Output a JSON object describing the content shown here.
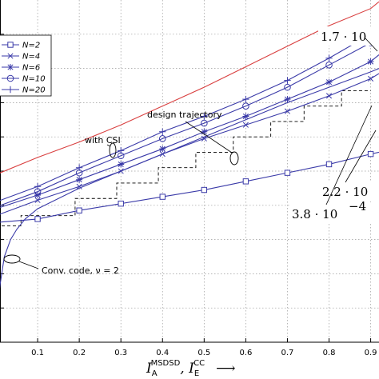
{
  "chart_data": {
    "type": "line",
    "xlabel": {
      "main1": "I",
      "sub1": "A",
      "sup1": "MSDSD",
      "sep": ", ",
      "main2": "I",
      "sub2": "E",
      "sup2": "CC",
      "arrow": "⟶"
    },
    "xlim": [
      0,
      0.92
    ],
    "ylim": [
      0,
      1
    ],
    "x_ticks": [
      "0.1",
      "0.2",
      "0.3",
      "0.4",
      "0.5",
      "0.6",
      "0.7",
      "0.8",
      "0.9"
    ],
    "grid": true,
    "legend_placement": "top-left",
    "series": [
      {
        "name": "N=2",
        "marker": "square",
        "color": "#3a3aa8",
        "x": [
          0.0,
          0.1,
          0.2,
          0.3,
          0.4,
          0.5,
          0.6,
          0.7,
          0.8,
          0.9,
          0.92
        ],
        "y": [
          0.35,
          0.36,
          0.385,
          0.405,
          0.425,
          0.445,
          0.47,
          0.495,
          0.52,
          0.55,
          0.555
        ]
      },
      {
        "name": "N=4",
        "marker": "x",
        "color": "#3a3aa8",
        "x": [
          0.0,
          0.1,
          0.2,
          0.3,
          0.4,
          0.5,
          0.6,
          0.7,
          0.8,
          0.9,
          0.92
        ],
        "y": [
          0.37,
          0.415,
          0.455,
          0.5,
          0.55,
          0.595,
          0.635,
          0.675,
          0.72,
          0.77,
          0.785
        ]
      },
      {
        "name": "N=6",
        "marker": "star",
        "color": "#3a3aa8",
        "x": [
          0.0,
          0.1,
          0.2,
          0.3,
          0.4,
          0.5,
          0.6,
          0.7,
          0.8,
          0.9,
          0.92
        ],
        "y": [
          0.39,
          0.43,
          0.475,
          0.52,
          0.565,
          0.615,
          0.66,
          0.71,
          0.76,
          0.82,
          0.84
        ]
      },
      {
        "name": "N=10",
        "marker": "circle",
        "color": "#3a3aa8",
        "x": [
          0.0,
          0.1,
          0.2,
          0.3,
          0.4,
          0.5,
          0.6,
          0.7,
          0.8,
          0.9,
          0.92
        ],
        "y": [
          0.395,
          0.44,
          0.495,
          0.545,
          0.595,
          0.64,
          0.69,
          0.745,
          0.81,
          0.875,
          0.89
        ]
      },
      {
        "name": "N=20",
        "marker": "plus",
        "color": "#3a3aa8",
        "x": [
          0.0,
          0.1,
          0.2,
          0.3,
          0.4,
          0.5,
          0.6,
          0.7,
          0.8,
          0.9,
          0.92
        ],
        "y": [
          0.41,
          0.455,
          0.51,
          0.56,
          0.615,
          0.66,
          0.71,
          0.765,
          0.83,
          0.9,
          0.915
        ]
      },
      {
        "name": "",
        "marker": "none",
        "color": "#d94040",
        "x": [
          0.0,
          0.1,
          0.2,
          0.3,
          0.4,
          0.5,
          0.6,
          0.7,
          0.8,
          0.9,
          0.92
        ],
        "y": [
          0.49,
          0.54,
          0.585,
          0.635,
          0.69,
          0.745,
          0.805,
          0.865,
          0.925,
          0.975,
          0.995
        ]
      },
      {
        "name": "",
        "marker": "none",
        "color": "#3a3aa8",
        "x": [
          0.0,
          0.01,
          0.02,
          0.035,
          0.05,
          0.07,
          0.1,
          0.15,
          0.2,
          0.3,
          0.4,
          0.5,
          0.6,
          0.7,
          0.8,
          0.9,
          0.92
        ],
        "y": [
          0.08,
          0.17,
          0.25,
          0.3,
          0.33,
          0.36,
          0.39,
          0.42,
          0.45,
          0.5,
          0.55,
          0.6,
          0.65,
          0.7,
          0.745,
          0.79,
          0.8
        ]
      }
    ],
    "trajectory": {
      "x": [
        0.0,
        0.06,
        0.06,
        0.19,
        0.19,
        0.29,
        0.29,
        0.39,
        0.39,
        0.48,
        0.48,
        0.57,
        0.57,
        0.66,
        0.66,
        0.74,
        0.74,
        0.83,
        0.83,
        0.9
      ],
      "y": [
        0.34,
        0.34,
        0.37,
        0.37,
        0.42,
        0.42,
        0.465,
        0.465,
        0.51,
        0.51,
        0.555,
        0.555,
        0.6,
        0.6,
        0.645,
        0.645,
        0.69,
        0.69,
        0.735,
        0.735
      ]
    },
    "annotations": {
      "with_csi": "with CSI",
      "design_trajectory": "design trajectory",
      "conv_code": "Conv. code, ν = 2",
      "val_top": "1.7 · 10",
      "val_mid": "2.2 · 10",
      "val_low": "3.8 · 10",
      "val_low_exp": "−4"
    }
  }
}
